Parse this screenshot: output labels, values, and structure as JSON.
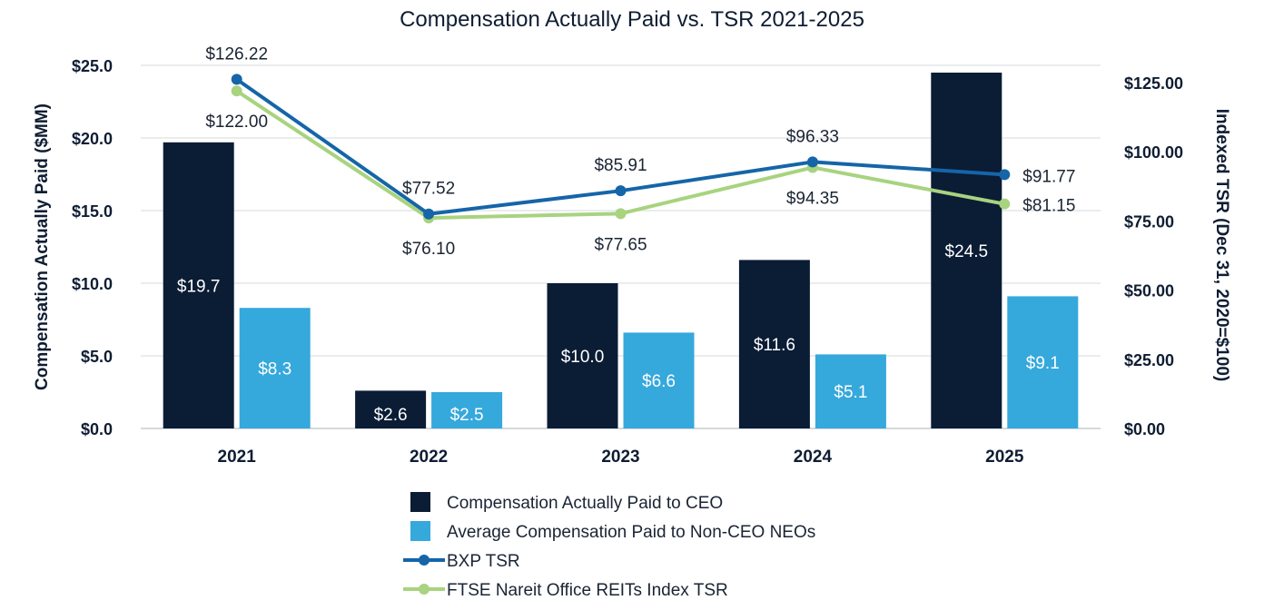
{
  "chart_data": {
    "type": "bar",
    "title": "Compensation Actually Paid vs. TSR 2021-2025",
    "categories": [
      "2021",
      "2022",
      "2023",
      "2024",
      "2025"
    ],
    "ylabel": "Compensation Actually Paid ($MM)",
    "y2label": "Indexed TSR (Dec 31, 2020=$100)",
    "ylim": [
      0,
      25
    ],
    "y2lim": [
      0,
      131.25
    ],
    "yticks": [
      "$0.0",
      "$5.0",
      "$10.0",
      "$15.0",
      "$20.0",
      "$25.0"
    ],
    "y2ticks": [
      "$0.00",
      "$25.00",
      "$50.00",
      "$75.00",
      "$100.00",
      "$125.00"
    ],
    "grid": true,
    "legend_position": "bottom",
    "series": [
      {
        "name": "Compensation Actually Paid to CEO",
        "kind": "bar",
        "axis": "left",
        "color": "#0b1c35",
        "values": [
          19.7,
          2.6,
          10.0,
          11.6,
          24.5
        ],
        "labels": [
          "$19.7",
          "$2.6",
          "$10.0",
          "$11.6",
          "$24.5"
        ]
      },
      {
        "name": "Average Compensation Paid to Non-CEO NEOs",
        "kind": "bar",
        "axis": "left",
        "color": "#35a8dc",
        "values": [
          8.3,
          2.5,
          6.6,
          5.1,
          9.1
        ],
        "labels": [
          "$8.3",
          "$2.5",
          "$6.6",
          "$5.1",
          "$9.1"
        ]
      },
      {
        "name": "BXP TSR",
        "kind": "line",
        "axis": "right",
        "color": "#1565a8",
        "values": [
          126.22,
          77.52,
          85.91,
          96.33,
          91.77
        ],
        "labels": [
          "$126.22",
          "$77.52",
          "$85.91",
          "$96.33",
          "$91.77"
        ]
      },
      {
        "name": "FTSE Nareit Office REITs Index TSR",
        "kind": "line",
        "axis": "right",
        "color": "#a8d37f",
        "values": [
          122.0,
          76.1,
          77.65,
          94.35,
          81.15
        ],
        "labels": [
          "$122.00",
          "$76.10",
          "$77.65",
          "$94.35",
          "$81.15"
        ]
      }
    ]
  }
}
